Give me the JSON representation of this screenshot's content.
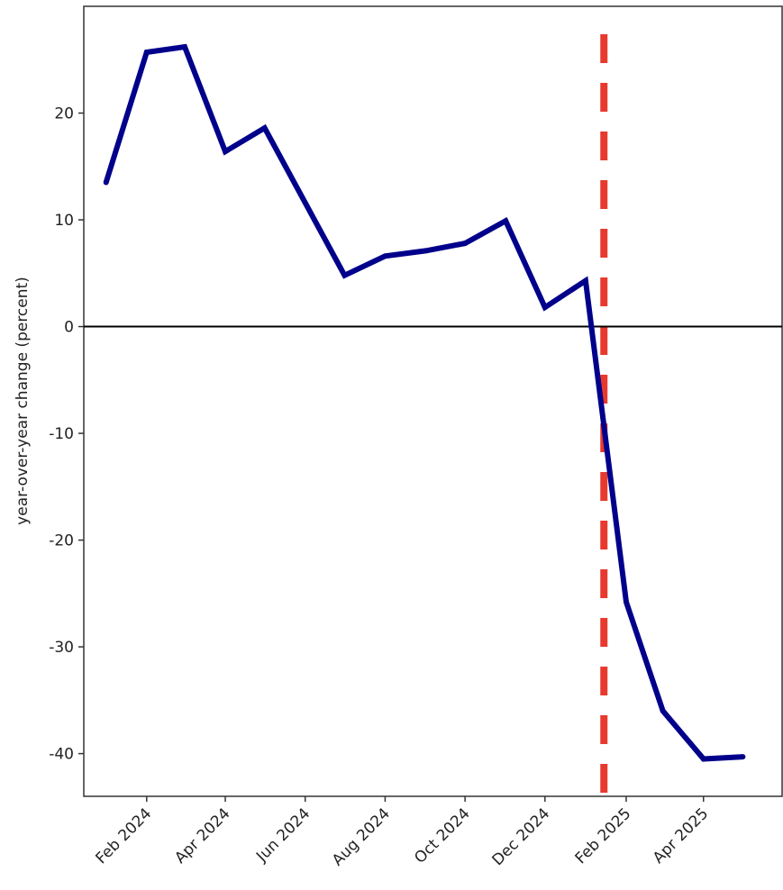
{
  "chart_data": {
    "type": "line",
    "title": "",
    "xlabel": "",
    "ylabel": "year-over-year change (percent)",
    "ylim": [
      -44,
      30
    ],
    "yticks": [
      20,
      10,
      0,
      -10,
      -20,
      -30,
      -40
    ],
    "ytick_labels": [
      "20",
      "10",
      "0",
      "-10",
      "-20",
      "-30",
      "-40"
    ],
    "xlim": [
      "2023-12-15",
      "2025-05-31"
    ],
    "xticks": [
      "2024-02-01",
      "2024-04-01",
      "2024-06-01",
      "2024-08-01",
      "2024-10-01",
      "2024-12-01",
      "2025-02-01",
      "2025-04-01"
    ],
    "xtick_labels": [
      "Feb 2024",
      "Apr 2024",
      "Jun 2024",
      "Aug 2024",
      "Oct 2024",
      "Dec 2024",
      "Feb 2025",
      "Apr 2025"
    ],
    "series": [
      {
        "color": "#00008b",
        "x": [
          "2024-01-01",
          "2024-02-01",
          "2024-03-01",
          "2024-04-01",
          "2024-05-01",
          "2024-06-01",
          "2024-07-01",
          "2024-08-01",
          "2024-09-01",
          "2024-10-01",
          "2024-11-01",
          "2024-12-01",
          "2025-01-01",
          "2025-02-01",
          "2025-03-01",
          "2025-04-01",
          "2025-05-01"
        ],
        "values": [
          13.5,
          25.7,
          26.2,
          16.4,
          18.6,
          11.6,
          4.8,
          6.6,
          7.1,
          7.8,
          9.9,
          1.8,
          4.3,
          -25.8,
          -36.0,
          -40.5,
          -40.3
        ]
      }
    ],
    "reference_lines": [
      {
        "orientation": "vertical",
        "x": "2025-01-15",
        "style": "dashed",
        "color": "#e8392e"
      },
      {
        "orientation": "horizontal",
        "y": 0,
        "style": "solid",
        "color": "#000000"
      }
    ],
    "grid": false,
    "legend": "none"
  }
}
